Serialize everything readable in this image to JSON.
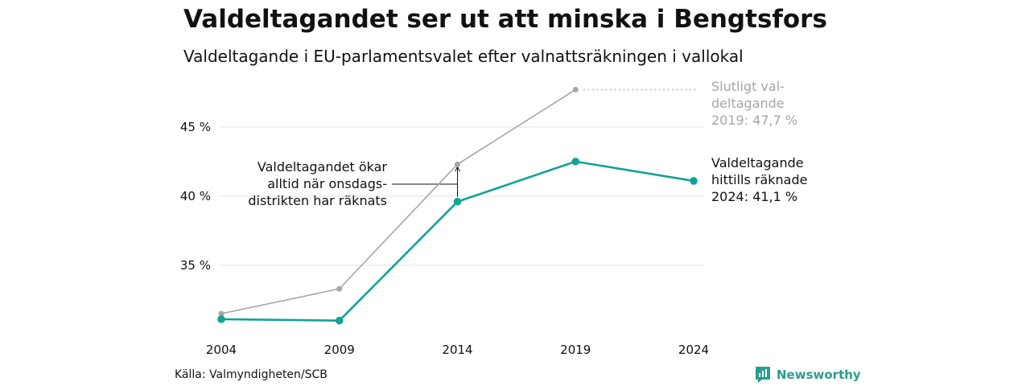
{
  "title": "Valdeltagandet ser ut att minska i Bengtsfors",
  "subtitle": "Valdeltagande i EU-parlamentsvalet efter valnattsräkningen i vallokal",
  "source": "Källa: Valmyndigheten/SCB",
  "brand": {
    "name": "Newsworthy",
    "color": "#2a9d8f"
  },
  "colors": {
    "final": "#a6a6a6",
    "counted": "#11a396",
    "grid": "#e2e2e2",
    "annotation_final": "#a6a6a6",
    "annotation_counted": "#111111"
  },
  "chart_data": {
    "type": "line",
    "x": [
      "2004",
      "2009",
      "2014",
      "2019",
      "2024"
    ],
    "ylim": [
      30.4,
      47.9
    ],
    "yticks": [
      35,
      40,
      45
    ],
    "ytick_labels": [
      "35 %",
      "40 %",
      "45 %"
    ],
    "grid": "horizontal",
    "series": [
      {
        "name": "Slutligt valdeltagande",
        "style": "final",
        "values": [
          31.5,
          33.3,
          42.3,
          47.7,
          null
        ]
      },
      {
        "name": "Valdeltagande hittills räknade",
        "style": "counted",
        "values": [
          31.1,
          31.0,
          39.6,
          42.5,
          41.1
        ]
      }
    ],
    "annotations": {
      "final_label": [
        "Slutligt val-",
        "deltagande",
        "2019: 47,7 %"
      ],
      "counted_label": [
        "Valdeltagande",
        "hittills räknade",
        "2024: 41,1 %"
      ],
      "callout": [
        "Valdeltagandet ökar",
        "alltid när onsdags-",
        "distrikten har räknats"
      ]
    }
  }
}
